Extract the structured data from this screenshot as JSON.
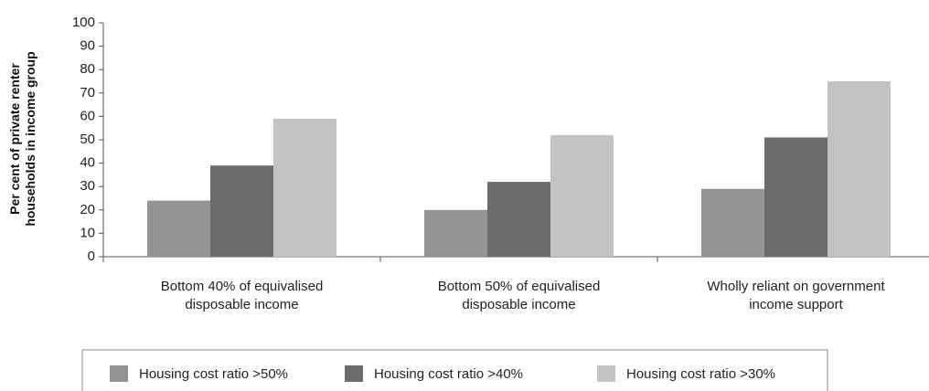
{
  "chart_data": {
    "type": "bar",
    "ylabel": "Per cent of private renter households in income group",
    "categories": [
      "Bottom 40% of equivalised disposable income",
      "Bottom 50% of equivalised disposable income",
      "Wholly reliant on government income support"
    ],
    "series": [
      {
        "name": "Housing cost ratio >50%",
        "color": "#949494",
        "values": [
          24,
          20,
          29
        ]
      },
      {
        "name": "Housing cost ratio >40%",
        "color": "#6b6b6b",
        "values": [
          39,
          32,
          51
        ]
      },
      {
        "name": "Housing cost ratio >30%",
        "color": "#c3c3c3",
        "values": [
          59,
          52,
          75
        ]
      }
    ],
    "ylim": [
      0,
      100
    ],
    "yticks": [
      0,
      10,
      20,
      30,
      40,
      50,
      60,
      70,
      80,
      90,
      100
    ],
    "grid": false,
    "legend": "bottom"
  }
}
